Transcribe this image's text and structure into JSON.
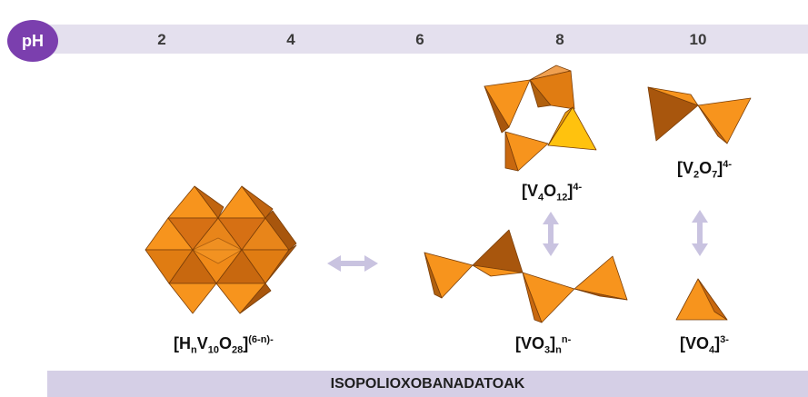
{
  "axis": {
    "label": "pH",
    "ticks": [
      "2",
      "4",
      "6",
      "8",
      "10"
    ]
  },
  "footer": "ISOPOLIOXOBANADATOAK",
  "formulas": {
    "decavanadate": {
      "pre": "[H",
      "s1": "n",
      "m1": "V",
      "s2": "10",
      "m2": "O",
      "s3": "28",
      "m3": "]",
      "sup": "(6-n)-"
    },
    "v4o12": {
      "pre": "[V",
      "s1": "4",
      "m1": "O",
      "s2": "12",
      "m2": "]",
      "sup": "4-"
    },
    "v2o7": {
      "pre": "[V",
      "s1": "2",
      "m1": "O",
      "s2": "7",
      "m2": "]",
      "sup": "4-"
    },
    "vo3": {
      "pre": "[VO",
      "s1": "3",
      "m1": "]",
      "s2": "n",
      "sup": "n-"
    },
    "vo4": {
      "pre": "[VO",
      "s1": "4",
      "m1": "]",
      "sup": "3-"
    }
  },
  "colors": {
    "accent": "#7b3fae",
    "band": "#e4e0ee",
    "footer_band": "#d5cfe6",
    "poly_light": "#f7941d",
    "poly_mid": "#e07c12",
    "poly_dark": "#a8560d",
    "poly_yellow": "#ffc20e",
    "arrow": "#c9c3e0"
  }
}
